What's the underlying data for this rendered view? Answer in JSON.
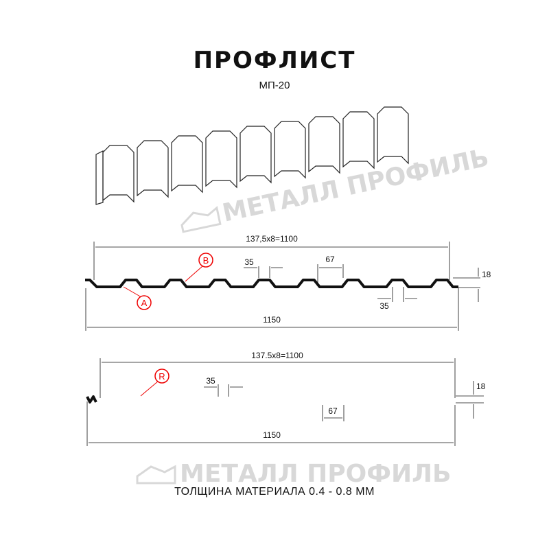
{
  "title": "ПРОФЛИСТ",
  "subtitle": "МП-20",
  "watermark": "МЕТАЛЛ ПРОФИЛЬ",
  "profile_a": {
    "pitch_dim": "137,5x8=1100",
    "top_width": "35",
    "bottom_width_label": "35",
    "rib_width": "67",
    "height": "18",
    "total_width": "1150",
    "marker_a": "A",
    "marker_b": "B"
  },
  "profile_r": {
    "pitch_dim": "137.5x8=1100",
    "top_width": "35",
    "rib_width": "67",
    "height": "18",
    "total_width": "1150",
    "marker_r": "R"
  },
  "footer": "ТОЛЩИНА МАТЕРИАЛА 0.4 - 0.8 ММ",
  "colors": {
    "line": "#111111",
    "marker": "#e00000",
    "watermark": "#d8d8d8"
  }
}
